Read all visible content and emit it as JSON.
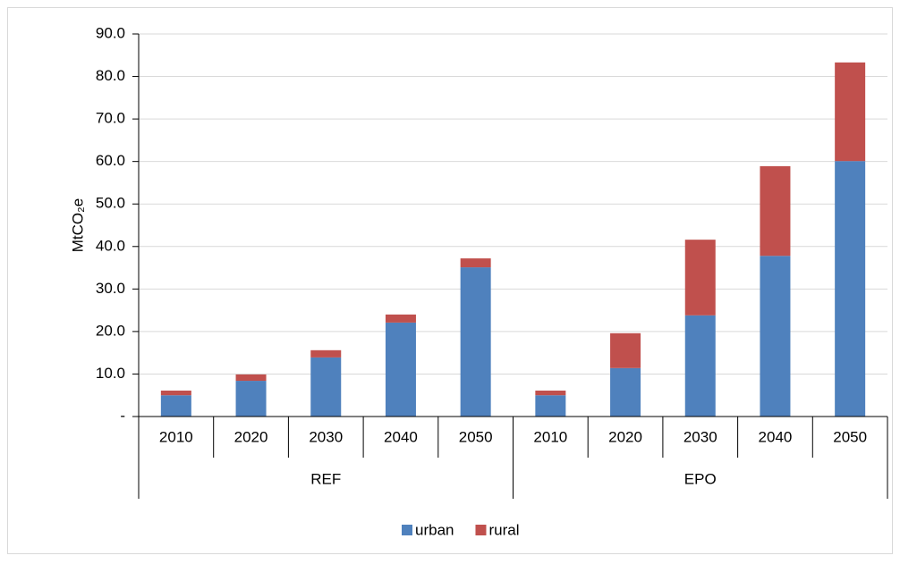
{
  "chart_data": {
    "type": "stacked_bar",
    "y_label": "MtCO₂e",
    "groups": [
      {
        "name": "REF",
        "categories": [
          "2010",
          "2020",
          "2030",
          "2040",
          "2050"
        ]
      },
      {
        "name": "EPO",
        "categories": [
          "2010",
          "2020",
          "2030",
          "2040",
          "2050"
        ]
      }
    ],
    "series": [
      {
        "name": "urban",
        "color": "#4f81bd",
        "values": [
          5.0,
          8.4,
          13.9,
          22.1,
          35.1,
          5.0,
          11.4,
          23.8,
          37.8,
          60.1
        ]
      },
      {
        "name": "rural",
        "color": "#c0504d",
        "values": [
          1.1,
          1.5,
          1.7,
          1.9,
          2.1,
          1.1,
          8.2,
          17.8,
          21.1,
          23.2
        ]
      }
    ],
    "ylim": [
      0,
      90
    ],
    "yticks": [
      {
        "value": 0,
        "label": "-"
      },
      {
        "value": 10,
        "label": "10.0"
      },
      {
        "value": 20,
        "label": "20.0"
      },
      {
        "value": 30,
        "label": "30.0"
      },
      {
        "value": 40,
        "label": "40.0"
      },
      {
        "value": 50,
        "label": "50.0"
      },
      {
        "value": 60,
        "label": "60.0"
      },
      {
        "value": 70,
        "label": "70.0"
      },
      {
        "value": 80,
        "label": "80.0"
      },
      {
        "value": 90,
        "label": "90.0"
      }
    ],
    "grid": true,
    "legend": "bottom"
  }
}
